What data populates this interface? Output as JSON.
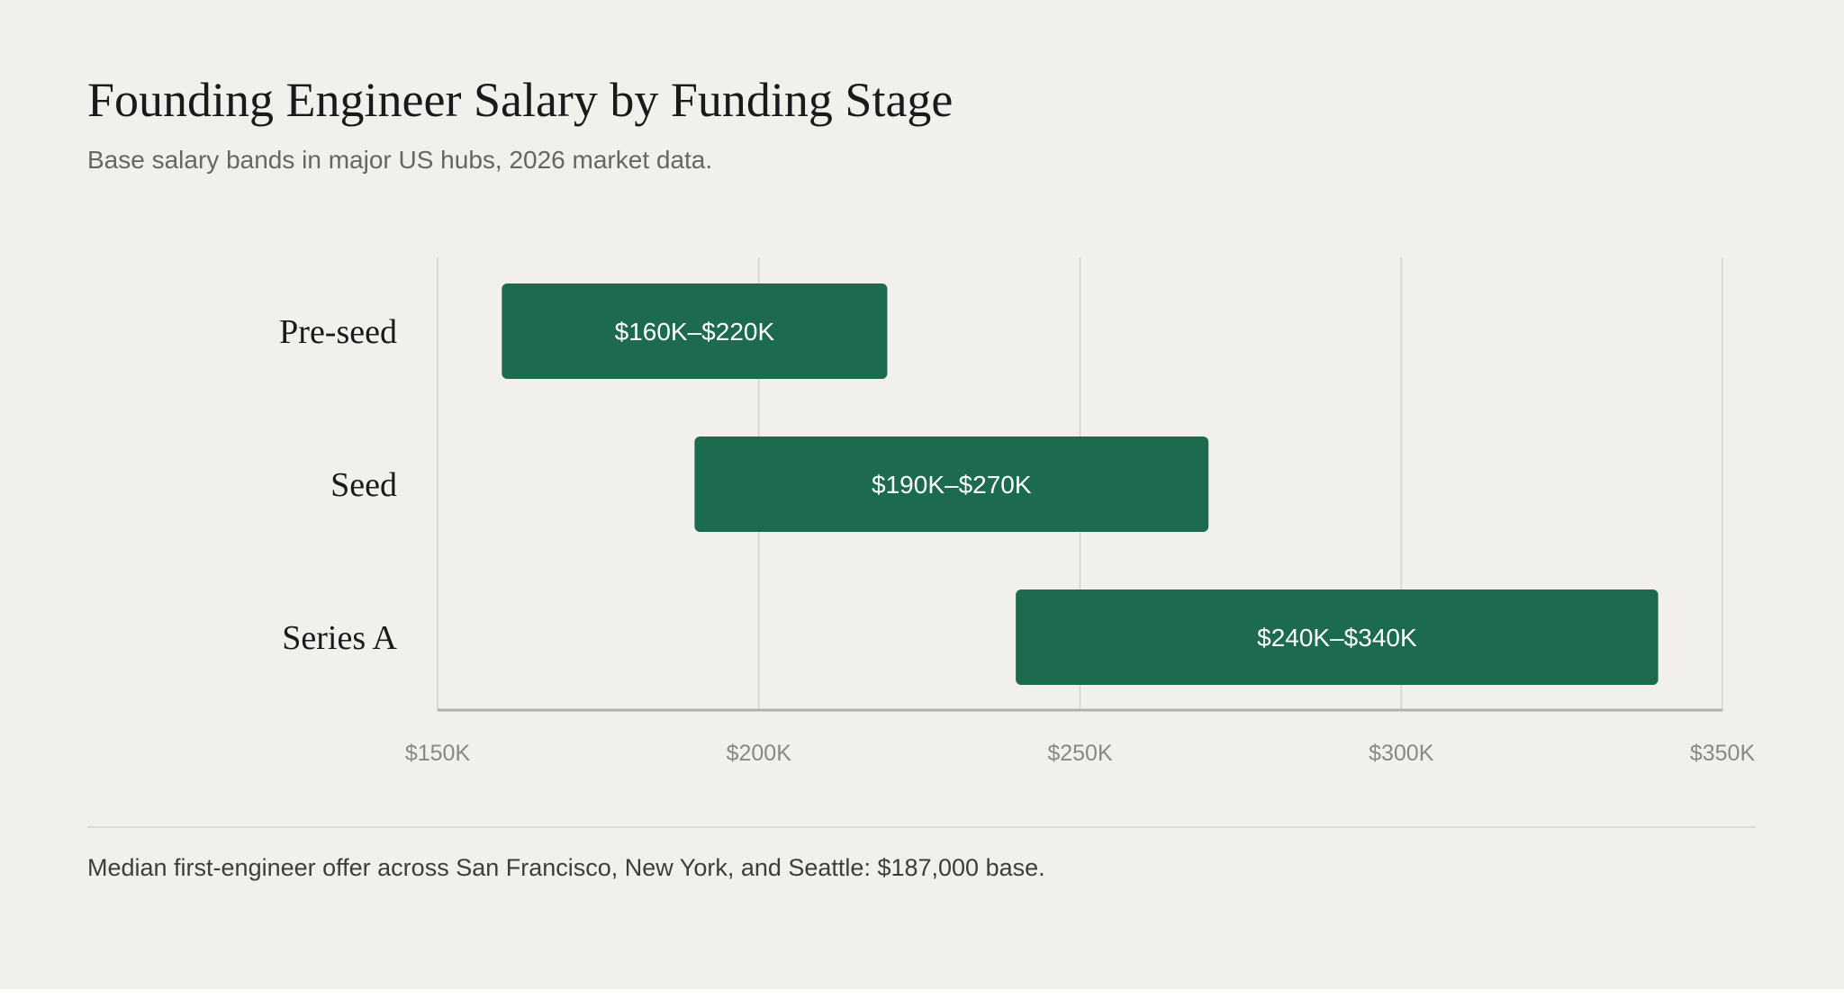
{
  "title": "Founding Engineer Salary by Funding Stage",
  "subtitle": "Base salary bands in major US hubs, 2026 market data.",
  "footnote": "Median first-engineer offer across San Francisco, New York, and Seattle: $187,000 base.",
  "colors": {
    "bar": "#1d6b4e",
    "bar_label": "#ffffff",
    "grid": "#dcd9d3",
    "axis": "#b3b1ab",
    "category_label": "#1a1a1a",
    "tick_label": "#8a8883"
  },
  "chart_data": {
    "type": "bar",
    "orientation": "horizontal",
    "subtype": "floating-range",
    "categories": [
      "Pre-seed",
      "Seed",
      "Series A"
    ],
    "series": [
      {
        "ranges": [
          [
            160000,
            220000
          ],
          [
            190000,
            270000
          ],
          [
            240000,
            340000
          ]
        ],
        "labels": [
          "$160K–$220K",
          "$190K–$270K",
          "$240K–$340K"
        ]
      }
    ],
    "xlim": [
      150000,
      350000
    ],
    "xticks": [
      150000,
      200000,
      250000,
      300000,
      350000
    ],
    "xtick_labels": [
      "$150K",
      "$200K",
      "$250K",
      "$300K",
      "$350K"
    ],
    "grid": "vertical",
    "legend": "none",
    "title": "Founding Engineer Salary by Funding Stage",
    "xlabel": "",
    "ylabel": ""
  }
}
